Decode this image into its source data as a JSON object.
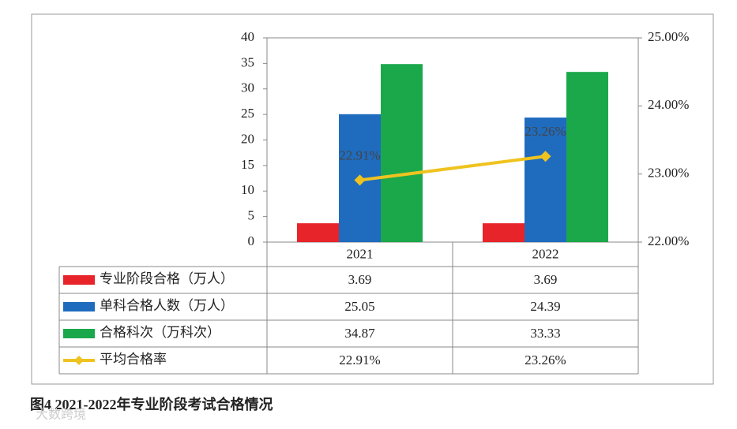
{
  "chart_data": {
    "type": "bar",
    "title": "图4  2021-2022年专业阶段考试合格情况",
    "watermark": "大数跨境",
    "categories": [
      "2021",
      "2022"
    ],
    "series": [
      {
        "name": "专业阶段合格（万人）",
        "color": "#e8242b",
        "values": [
          3.69,
          3.69
        ]
      },
      {
        "name": "单科合格人数（万人）",
        "color": "#1f6cbf",
        "values": [
          25.05,
          24.39
        ]
      },
      {
        "name": "合格科次（万科次）",
        "color": "#1ba84b",
        "values": [
          34.87,
          33.33
        ]
      },
      {
        "name": "平均合格率",
        "color": "#efc31f",
        "type": "line",
        "axis": "y2",
        "values": [
          22.91,
          23.26
        ],
        "value_labels": [
          "22.91%",
          "23.26%"
        ]
      }
    ],
    "ylim": [
      0,
      40
    ],
    "yticks": [
      0,
      5,
      10,
      15,
      20,
      25,
      30,
      35,
      40
    ],
    "y2lim": [
      22,
      25
    ],
    "y2ticks": [
      {
        "value": 22,
        "label": "22.00%"
      },
      {
        "value": 23,
        "label": "23.00%"
      },
      {
        "value": 24,
        "label": "24.00%"
      },
      {
        "value": 25,
        "label": "25.00%"
      }
    ]
  }
}
